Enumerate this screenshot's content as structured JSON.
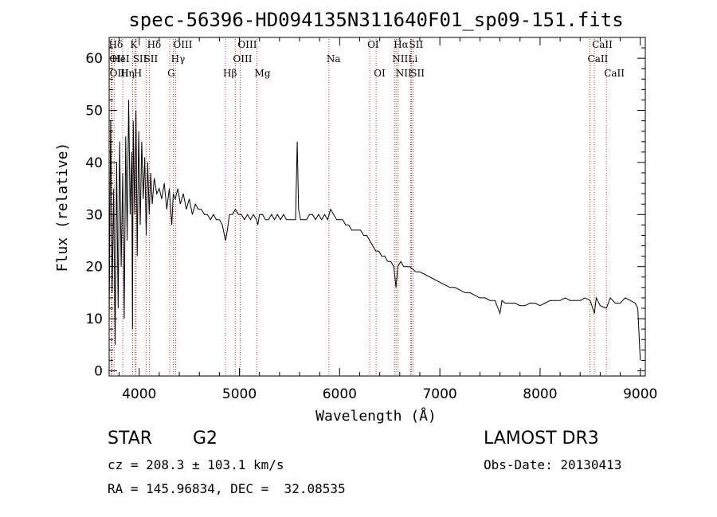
{
  "chart_data": {
    "type": "line",
    "title": "spec-56396-HD094135N311640F01_sp09-151.fits",
    "xlabel": "Wavelength (Å)",
    "ylabel": "Flux (relative)",
    "xlim": [
      3700,
      9050
    ],
    "ylim": [
      -1,
      64
    ],
    "xticks": [
      4000,
      5000,
      6000,
      7000,
      8000,
      9000
    ],
    "yticks": [
      0,
      10,
      20,
      30,
      40,
      50,
      60
    ],
    "grid": false,
    "series": [
      {
        "name": "spectrum",
        "x": [
          3700,
          3715,
          3730,
          3745,
          3760,
          3775,
          3790,
          3805,
          3820,
          3835,
          3850,
          3865,
          3880,
          3895,
          3910,
          3925,
          3933,
          3940,
          3955,
          3968,
          3980,
          3995,
          4010,
          4025,
          4040,
          4055,
          4070,
          4085,
          4100,
          4115,
          4130,
          4150,
          4175,
          4200,
          4225,
          4250,
          4275,
          4300,
          4325,
          4340,
          4360,
          4385,
          4410,
          4440,
          4470,
          4500,
          4530,
          4560,
          4590,
          4620,
          4650,
          4680,
          4710,
          4740,
          4770,
          4800,
          4830,
          4861,
          4880,
          4900,
          4930,
          4960,
          4990,
          5020,
          5050,
          5080,
          5110,
          5140,
          5170,
          5183,
          5200,
          5230,
          5260,
          5290,
          5320,
          5350,
          5380,
          5410,
          5440,
          5470,
          5500,
          5530,
          5560,
          5577,
          5590,
          5610,
          5640,
          5670,
          5700,
          5730,
          5760,
          5790,
          5820,
          5850,
          5880,
          5910,
          5940,
          5970,
          6000,
          6030,
          6060,
          6090,
          6120,
          6150,
          6180,
          6210,
          6240,
          6270,
          6300,
          6330,
          6360,
          6390,
          6420,
          6450,
          6480,
          6510,
          6540,
          6563,
          6580,
          6610,
          6640,
          6670,
          6700,
          6730,
          6760,
          6800,
          6850,
          6900,
          6950,
          7000,
          7050,
          7100,
          7150,
          7200,
          7250,
          7300,
          7350,
          7400,
          7450,
          7500,
          7550,
          7600,
          7620,
          7650,
          7700,
          7750,
          7800,
          7850,
          7900,
          7950,
          8000,
          8050,
          8100,
          8150,
          8200,
          8250,
          8300,
          8350,
          8400,
          8450,
          8500,
          8542,
          8560,
          8600,
          8662,
          8700,
          8750,
          8800,
          8850,
          8900,
          8950,
          8975,
          9000
        ],
        "values": [
          10,
          48,
          15,
          35,
          5,
          40,
          12,
          44,
          20,
          38,
          10,
          45,
          25,
          52,
          30,
          42,
          8,
          48,
          30,
          50,
          22,
          46,
          28,
          44,
          33,
          41,
          26,
          40,
          30,
          38,
          32,
          37,
          34,
          35,
          33,
          36,
          31,
          35,
          28,
          34,
          33,
          35,
          32,
          34,
          31,
          33,
          30,
          32,
          31,
          31,
          30,
          30,
          29,
          30,
          29,
          29,
          28,
          25,
          27,
          30,
          30,
          31,
          30,
          30,
          29,
          30,
          29,
          30,
          29,
          28,
          30,
          30,
          29,
          29,
          30,
          29,
          30,
          29,
          30,
          29,
          29,
          29,
          29,
          44,
          31,
          29,
          29,
          29,
          30,
          30,
          29,
          30,
          29,
          30,
          29,
          31,
          30,
          29,
          29,
          29,
          28,
          28,
          27,
          27,
          27,
          27,
          26,
          26,
          25,
          24,
          23,
          23,
          22,
          22,
          21,
          21,
          20,
          16,
          20,
          21,
          20,
          20,
          20,
          19.5,
          19,
          19,
          18.5,
          18,
          17.5,
          17,
          16.5,
          16,
          16,
          15.5,
          15,
          15,
          14.5,
          14,
          14,
          13.5,
          13.5,
          11,
          13.5,
          13,
          13,
          13,
          12.5,
          12.5,
          13,
          13,
          12.5,
          13,
          13.5,
          13.5,
          13.5,
          14,
          13.5,
          13.5,
          13.5,
          14,
          13.5,
          11,
          14,
          12.5,
          12,
          14,
          13,
          13,
          14,
          13.5,
          13,
          12,
          2
        ]
      }
    ],
    "line_markers": [
      {
        "name": "H6",
        "labels": [
          "Hδ"
        ],
        "x": 3720,
        "row": 0
      },
      {
        "name": "OII",
        "labels": [
          "OII"
        ],
        "x": 3727,
        "row": 1
      },
      {
        "name": "OIII-a",
        "labels": [
          "OIII"
        ],
        "x": 3729,
        "row": 2
      },
      {
        "name": "HeI",
        "labels": [
          "HeI"
        ],
        "x": 3750,
        "row": 1
      },
      {
        "name": "Heta",
        "labels": [
          "Hη"
        ],
        "x": 3835,
        "row": 2
      },
      {
        "name": "K",
        "labels": [
          "K"
        ],
        "x": 3934,
        "row": 0
      },
      {
        "name": "H",
        "labels": [
          "H"
        ],
        "x": 3968,
        "row": 2
      },
      {
        "name": "SII-a",
        "labels": [
          "SII"
        ],
        "x": 3960,
        "row": 1
      },
      {
        "name": "Hd",
        "labels": [
          "Hδ"
        ],
        "x": 4102,
        "row": 0
      },
      {
        "name": "SII-b",
        "labels": [
          "SII"
        ],
        "x": 4070,
        "row": 1
      },
      {
        "name": "OIII-b",
        "labels": [
          "OIII"
        ],
        "x": 4363,
        "row": 0
      },
      {
        "name": "Hg",
        "labels": [
          "Hγ"
        ],
        "x": 4341,
        "row": 1
      },
      {
        "name": "G",
        "labels": [
          "G"
        ],
        "x": 4305,
        "row": 2
      },
      {
        "name": "Hb",
        "labels": [
          "Hβ"
        ],
        "x": 4861,
        "row": 2
      },
      {
        "name": "OIII-c",
        "labels": [
          "OIII"
        ],
        "x": 5007,
        "row": 0
      },
      {
        "name": "OIII-d",
        "labels": [
          "OIII"
        ],
        "x": 4959,
        "row": 1
      },
      {
        "name": "Mg",
        "labels": [
          "Mg"
        ],
        "x": 5175,
        "row": 2
      },
      {
        "name": "Na",
        "labels": [
          "Na"
        ],
        "x": 5893,
        "row": 1
      },
      {
        "name": "OI-a",
        "labels": [
          "OI"
        ],
        "x": 6300,
        "row": 0
      },
      {
        "name": "OI-b",
        "labels": [
          "OI"
        ],
        "x": 6364,
        "row": 2
      },
      {
        "name": "Ha",
        "labels": [
          "Hα"
        ],
        "x": 6563,
        "row": 0
      },
      {
        "name": "NII-a",
        "labels": [
          "NII"
        ],
        "x": 6548,
        "row": 1
      },
      {
        "name": "NII-b",
        "labels": [
          "NII"
        ],
        "x": 6584,
        "row": 2
      },
      {
        "name": "SII-c",
        "labels": [
          "SII"
        ],
        "x": 6717,
        "row": 0
      },
      {
        "name": "Li",
        "labels": [
          "Li"
        ],
        "x": 6708,
        "row": 1
      },
      {
        "name": "SII-d",
        "labels": [
          "SII"
        ],
        "x": 6731,
        "row": 2
      },
      {
        "name": "CaII-a",
        "labels": [
          "CaII"
        ],
        "x": 8542,
        "row": 0
      },
      {
        "name": "CaII-b",
        "labels": [
          "CaII"
        ],
        "x": 8498,
        "row": 1
      },
      {
        "name": "CaII-c",
        "labels": [
          "CaII"
        ],
        "x": 8662,
        "row": 2
      }
    ]
  },
  "info": {
    "class": "STAR",
    "subclass": "G2",
    "survey": "LAMOST DR3",
    "cz": "cz = 208.3 ± 103.1 km/s",
    "obsdate": "Obs-Date: 20130413",
    "coords": "RA = 145.96834, DEC =  32.08535"
  },
  "colors": {
    "marker": "#cc3333",
    "spectrum": "#000000"
  }
}
